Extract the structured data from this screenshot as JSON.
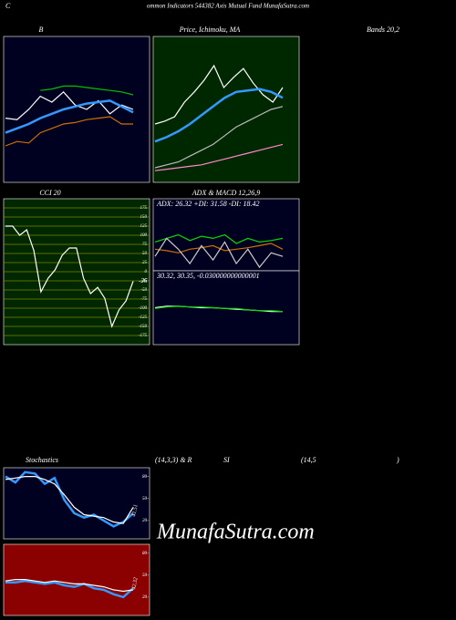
{
  "header": {
    "letter": "C",
    "title": "ommon  Indicators 544382  Axis Mutual Fund MunafaSutra.com"
  },
  "watermark": "MunafaSutra.com",
  "chart_data": [
    {
      "type": "line",
      "title": "B",
      "subtitle": "Bands 20,2",
      "background": "#000020",
      "border": "#ffffff",
      "ylim": [
        0,
        100
      ],
      "series": [
        {
          "color": "#00c000",
          "values": [
            null,
            null,
            null,
            63,
            64,
            66,
            66,
            65,
            64,
            63,
            62,
            60
          ]
        },
        {
          "color": "#ffffff",
          "values": [
            44,
            43,
            50,
            59,
            55,
            62,
            53,
            50,
            56,
            47,
            53,
            50
          ]
        },
        {
          "color": "#3399ff",
          "values": [
            34,
            37,
            40,
            44,
            47,
            50,
            52,
            54,
            55,
            56,
            52,
            48
          ]
        },
        {
          "color": "#d07000",
          "values": [
            25,
            28,
            27,
            34,
            37,
            40,
            41,
            43,
            44,
            45,
            40,
            40
          ]
        }
      ]
    },
    {
      "type": "line",
      "title": "Price, Ichimoku, MA",
      "background": "#002800",
      "border": "#ffffff",
      "ylim": [
        0,
        100
      ],
      "series": [
        {
          "color": "#ffffff",
          "values": [
            40,
            42,
            45,
            55,
            62,
            70,
            80,
            65,
            72,
            78,
            68,
            60,
            55,
            65
          ]
        },
        {
          "color": "#3399ff",
          "values": [
            28,
            31,
            35,
            40,
            46,
            52,
            58,
            62,
            63,
            64,
            62,
            58
          ]
        },
        {
          "color": "#bbbbbb",
          "values": [
            10,
            12,
            14,
            18,
            22,
            26,
            32,
            38,
            42,
            46,
            50,
            52
          ]
        },
        {
          "color": "#ff88cc",
          "values": [
            8,
            9,
            10,
            11,
            12,
            14,
            16,
            18,
            20,
            22,
            24,
            26
          ]
        }
      ]
    },
    {
      "type": "line",
      "title": "CCI 20",
      "background": "#002800",
      "border": "#ffffff",
      "grid": true,
      "grid_color": "#808000",
      "ylim": [
        -200,
        200
      ],
      "yticks": [
        175,
        150,
        125,
        100,
        75,
        50,
        25,
        0,
        -25,
        -50,
        -75,
        -100,
        -125,
        -150,
        -175
      ],
      "series": [
        {
          "color": "#ffffff",
          "values": [
            125,
            125,
            100,
            115,
            58,
            -55,
            -18,
            5,
            45,
            65,
            65,
            -18,
            -60,
            -43,
            -73,
            -150,
            -105,
            -80,
            -26
          ]
        }
      ]
    },
    {
      "type": "line",
      "title": "ADX  & MACD 12,26,9",
      "annotation": "ADX: 26.32  +DI: 31.58  -DI: 18.42",
      "background": "#000020",
      "border": "#ffffff",
      "ylim": [
        0,
        100
      ],
      "series": [
        {
          "color": "#00dd00",
          "values": [
            40,
            45,
            50,
            42,
            48,
            45,
            50,
            38,
            45,
            40,
            42,
            45
          ]
        },
        {
          "color": "#d07000",
          "values": [
            30,
            28,
            25,
            30,
            32,
            35,
            28,
            30,
            32,
            35,
            38,
            30
          ]
        },
        {
          "color": "#cccccc",
          "values": [
            20,
            45,
            30,
            10,
            35,
            15,
            40,
            10,
            30,
            5,
            25,
            20
          ]
        }
      ]
    },
    {
      "type": "line",
      "annotation": "30.32,  30.35,  -0.030000000000001",
      "background": "#000020",
      "border": "#ffffff",
      "ylim": [
        0,
        100
      ],
      "series": [
        {
          "color": "#ffffff",
          "values": [
            50,
            52,
            52,
            51,
            50,
            50,
            49,
            48,
            47,
            46,
            45,
            45
          ]
        },
        {
          "color": "#00dd00",
          "values": [
            49,
            51,
            52,
            51,
            51,
            50,
            49,
            49,
            47,
            46,
            46,
            45
          ]
        }
      ]
    },
    {
      "type": "line",
      "title_parts": [
        "Stochastics",
        "(14,3,3) & R",
        "SI",
        "(14,5",
        ")"
      ],
      "annotation": "41.51",
      "background": "#000020",
      "border": "#ffffff",
      "ylim": [
        -5,
        92
      ],
      "yticks": [
        80,
        50,
        20
      ],
      "series": [
        {
          "color": "#3399ff",
          "values": [
            80,
            72,
            86,
            84,
            70,
            78,
            48,
            30,
            24,
            28,
            20,
            12,
            18,
            30
          ]
        },
        {
          "color": "#ffffff",
          "values": [
            76,
            78,
            80,
            80,
            76,
            70,
            55,
            38,
            28,
            26,
            24,
            18,
            16,
            38
          ]
        }
      ]
    },
    {
      "type": "line",
      "annotation": "42.32",
      "background": "#8b0000",
      "border": "#ffffff",
      "ylim": [
        -5,
        92
      ],
      "yticks": [
        80,
        50,
        20
      ],
      "series": [
        {
          "color": "#3399ff",
          "values": [
            40,
            40,
            42,
            40,
            38,
            40,
            36,
            34,
            38,
            32,
            30,
            24,
            20,
            32
          ]
        },
        {
          "color": "#ffffff",
          "values": [
            42,
            44,
            44,
            42,
            40,
            42,
            40,
            38,
            38,
            36,
            34,
            30,
            28,
            30
          ]
        }
      ]
    }
  ]
}
